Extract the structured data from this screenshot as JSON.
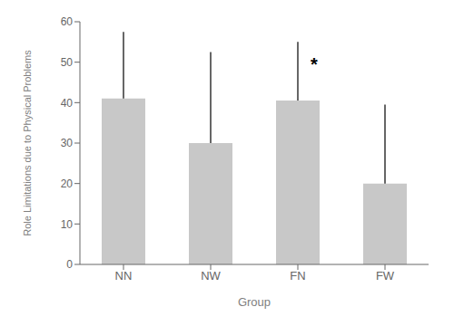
{
  "chart_data": {
    "type": "bar",
    "xlabel": "Group",
    "ylabel": "Role Limitations due to Physical Problems",
    "categories": [
      "NN",
      "NW",
      "FN",
      "FW"
    ],
    "values": [
      41.0,
      30.0,
      40.5,
      20.0
    ],
    "error_upper": [
      16.5,
      22.5,
      14.5,
      19.5
    ],
    "color": "#c8c8c8",
    "ylim": [
      0,
      60
    ],
    "yticks": [
      0,
      10,
      20,
      30,
      40,
      50,
      60
    ],
    "grid": false,
    "annotations": [
      {
        "text": "*",
        "category": "FN",
        "y": 49.5
      }
    ]
  }
}
